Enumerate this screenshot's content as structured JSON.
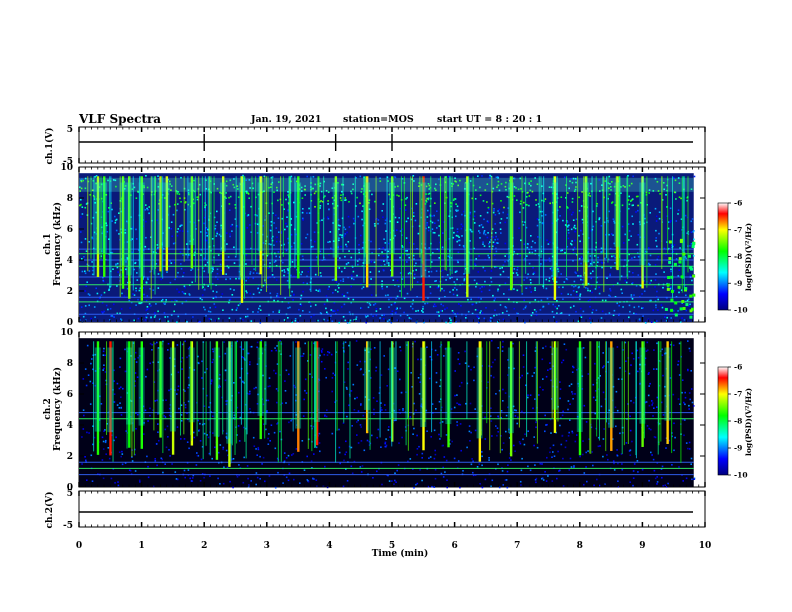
{
  "header": {
    "title": "VLF Spectra",
    "date": "Jan. 19, 2021",
    "station": "station=MOS",
    "start": "start UT =  8 : 20 : 1"
  },
  "chart_data": [
    {
      "type": "line",
      "name": "ch1-waveform",
      "ylabel": "ch.1(V)",
      "ylim": [
        -5,
        5
      ],
      "yticks": [
        "5",
        "-5"
      ],
      "xlim": [
        0,
        10
      ],
      "grid": false,
      "x": [
        0,
        9.8
      ],
      "y": [
        0,
        0
      ]
    },
    {
      "type": "heatmap",
      "name": "ch1-spectrogram",
      "ylabel": "ch.1\nFrequency (kHz)",
      "xlim": [
        0,
        10
      ],
      "ylim": [
        0,
        10
      ],
      "yticks": [
        "0",
        "2",
        "4",
        "6",
        "8",
        "10"
      ],
      "colorbar": {
        "label": "log(PSD)(V²/Hz)",
        "ticks": [
          "-6",
          "-7",
          "-8",
          "-9",
          "-10"
        ],
        "range": [
          -10,
          -6
        ]
      },
      "sferic_times_min": [
        0.3,
        0.4,
        0.7,
        0.8,
        1.0,
        1.3,
        1.4,
        1.8,
        2.3,
        2.6,
        2.9,
        3.5,
        4.1,
        4.6,
        5.0,
        5.5,
        6.2,
        6.9,
        7.6,
        8.1,
        8.6,
        9.0
      ],
      "tones_khz": [
        0.5,
        1.3,
        1.6,
        2.4,
        2.9,
        3.6,
        4.0,
        4.4,
        4.7
      ]
    },
    {
      "type": "heatmap",
      "name": "ch2-spectrogram",
      "ylabel": "ch.2\nFrequency (kHz)",
      "xlim": [
        0,
        10
      ],
      "ylim": [
        0,
        10
      ],
      "yticks": [
        "0",
        "2",
        "4",
        "6",
        "8",
        "10"
      ],
      "colorbar": {
        "label": "log(PSD)(V²/Hz)",
        "ticks": [
          "-6",
          "-7",
          "-8",
          "-9",
          "-10"
        ],
        "range": [
          -10,
          -6
        ]
      },
      "sferic_times_min": [
        0.3,
        0.5,
        0.8,
        1.0,
        1.3,
        1.5,
        1.8,
        2.2,
        2.4,
        2.9,
        3.5,
        3.8,
        4.6,
        5.0,
        5.5,
        5.9,
        6.4,
        6.9,
        7.6,
        8.0,
        8.5,
        9.0,
        9.4
      ],
      "tones_khz": [
        0.8,
        1.2,
        1.6,
        4.4,
        4.8
      ]
    },
    {
      "type": "line",
      "name": "ch2-waveform",
      "ylabel": "ch.2(V)",
      "ylim": [
        -5,
        5
      ],
      "yticks": [
        "5",
        "-5"
      ],
      "xlim": [
        0,
        10
      ],
      "grid": false,
      "x": [
        0,
        9.8
      ],
      "y": [
        0,
        0
      ]
    }
  ],
  "xaxis": {
    "label": "Time (min)",
    "ticks": [
      "0",
      "1",
      "2",
      "3",
      "4",
      "5",
      "6",
      "7",
      "8",
      "9",
      "10"
    ]
  }
}
